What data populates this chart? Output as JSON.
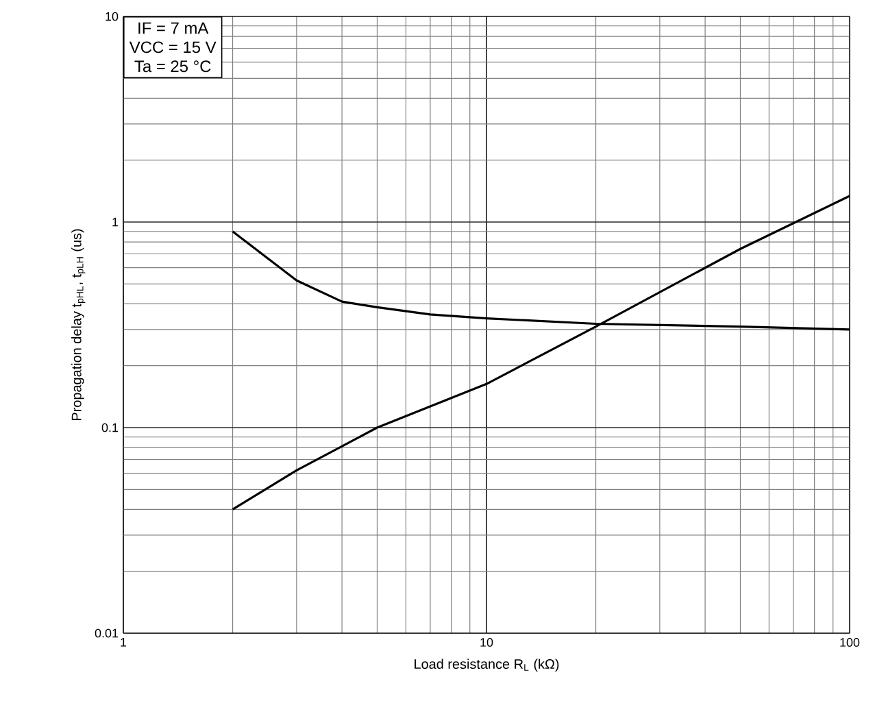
{
  "chart_data": {
    "type": "line",
    "xlabel": "Load resistance   R$_{L}$ (kΩ)",
    "ylabel": "Propagation delay   t$_{pHL}$, t$_{pLH}$ (us)",
    "log": "xy",
    "grid": true,
    "marker": "none",
    "line_style": "solid",
    "xlim": [
      1,
      100
    ],
    "xticks": [
      1,
      10,
      100
    ],
    "ylim": [
      0.01,
      10
    ],
    "yticks": [
      0.01,
      0.1,
      1,
      10
    ],
    "annotations": [
      "IF = 7 mA",
      "VCC = 15 V",
      "Ta = 25 °C"
    ],
    "series": [
      {
        "color": "#000000",
        "x": [
          2,
          3,
          4,
          5,
          7,
          10,
          20,
          50,
          100
        ],
        "values": [
          0.9,
          0.52,
          0.41,
          0.385,
          0.355,
          0.34,
          0.32,
          0.31,
          0.3
        ]
      },
      {
        "color": "#000000",
        "x": [
          2,
          3,
          5,
          10,
          20,
          50,
          100
        ],
        "values": [
          0.04,
          0.062,
          0.1,
          0.163,
          0.31,
          0.74,
          1.34
        ]
      }
    ]
  }
}
